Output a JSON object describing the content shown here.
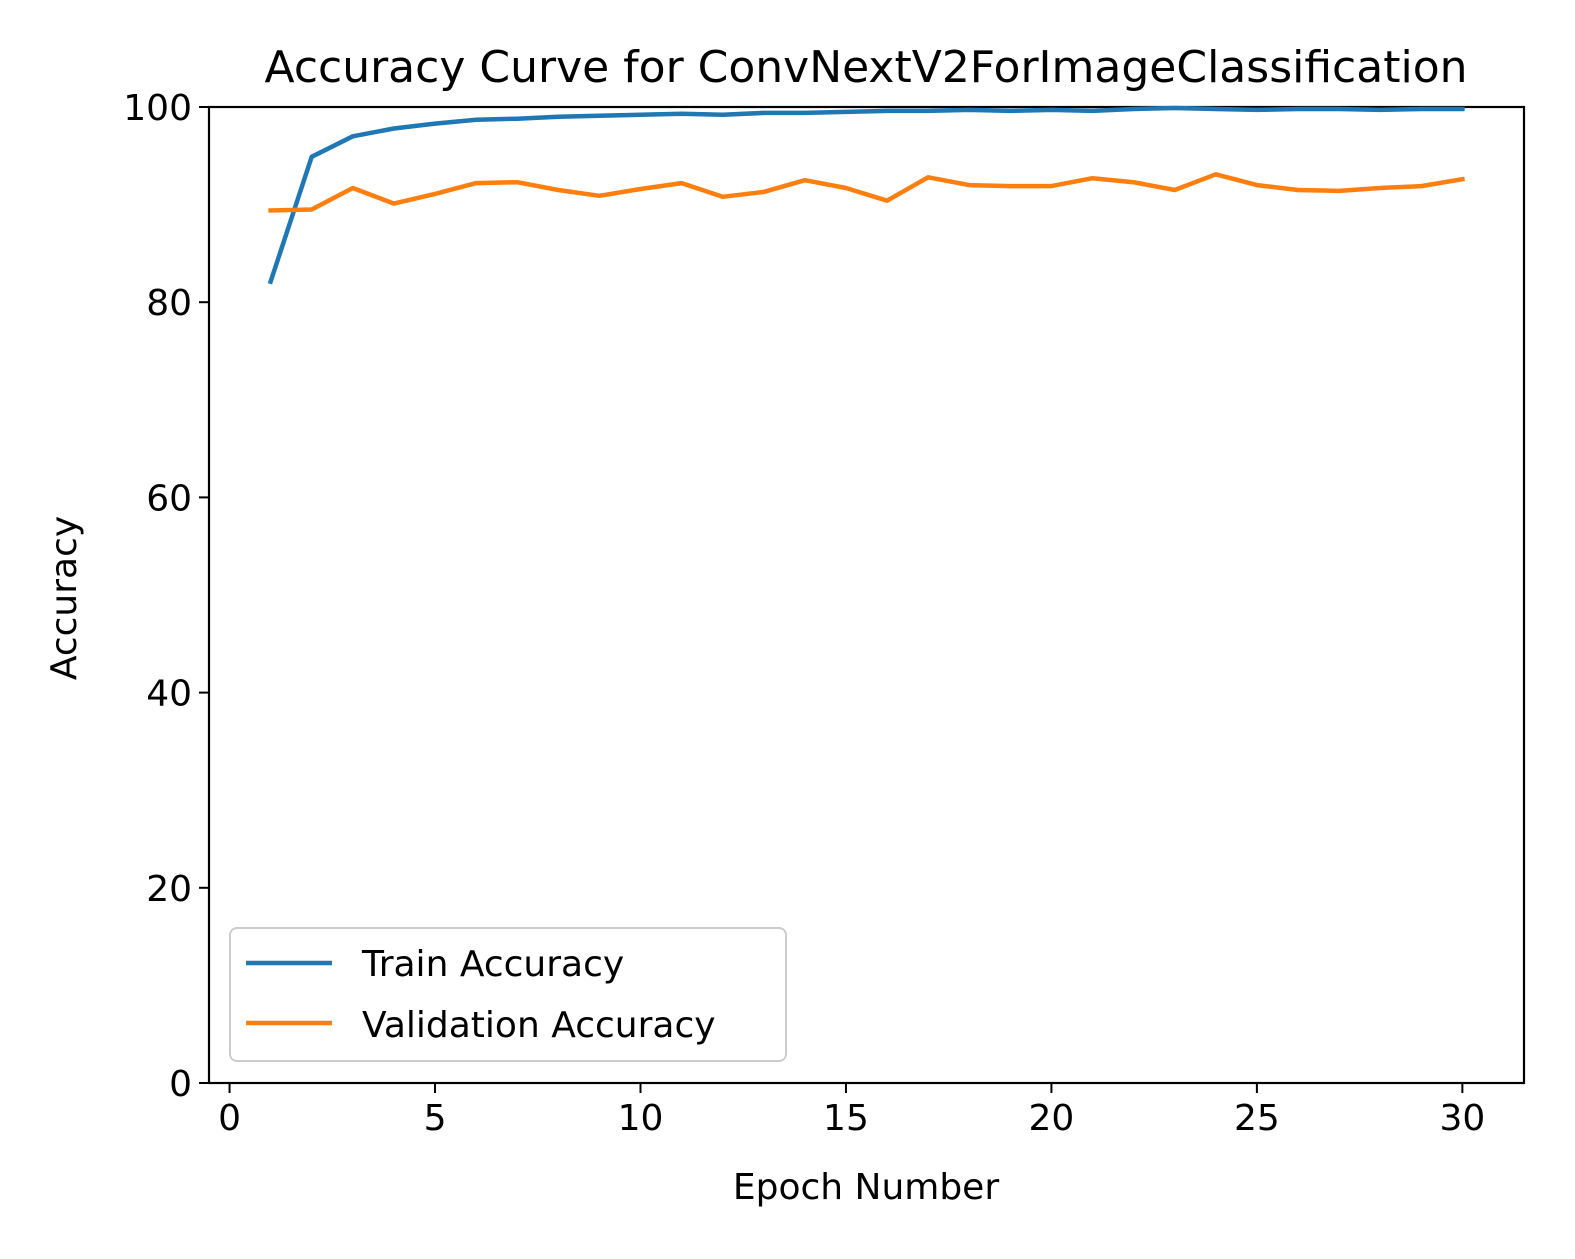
{
  "chart_data": {
    "type": "line",
    "title": "Accuracy Curve for  ConvNextV2ForImageClassification",
    "xlabel": "Epoch Number",
    "ylabel": "Accuracy",
    "xlim": [
      -0.5,
      31.5
    ],
    "ylim": [
      0,
      100
    ],
    "xticks": [
      0,
      5,
      10,
      15,
      20,
      25,
      30
    ],
    "yticks": [
      0,
      20,
      40,
      60,
      80,
      100
    ],
    "grid": false,
    "legend_position": "lower-left",
    "x": [
      1,
      2,
      3,
      4,
      5,
      6,
      7,
      8,
      9,
      10,
      11,
      12,
      13,
      14,
      15,
      16,
      17,
      18,
      19,
      20,
      21,
      22,
      23,
      24,
      25,
      26,
      27,
      28,
      29,
      30
    ],
    "series": [
      {
        "name": "Train Accuracy",
        "color": "#1f77b4",
        "values": [
          82.1,
          94.9,
          97.0,
          97.8,
          98.3,
          98.7,
          98.8,
          99.0,
          99.1,
          99.2,
          99.3,
          99.2,
          99.4,
          99.4,
          99.5,
          99.6,
          99.6,
          99.7,
          99.6,
          99.7,
          99.6,
          99.8,
          99.9,
          99.8,
          99.7,
          99.8,
          99.8,
          99.7,
          99.8,
          99.8
        ]
      },
      {
        "name": "Validation Accuracy",
        "color": "#ff7f0e",
        "values": [
          89.4,
          89.5,
          91.7,
          90.1,
          91.1,
          92.2,
          92.3,
          91.5,
          90.9,
          91.6,
          92.2,
          90.8,
          91.3,
          92.5,
          91.7,
          90.4,
          92.8,
          92.0,
          91.9,
          91.9,
          92.7,
          92.3,
          91.5,
          93.1,
          92.0,
          91.5,
          91.4,
          91.7,
          91.9,
          92.6
        ]
      }
    ]
  }
}
